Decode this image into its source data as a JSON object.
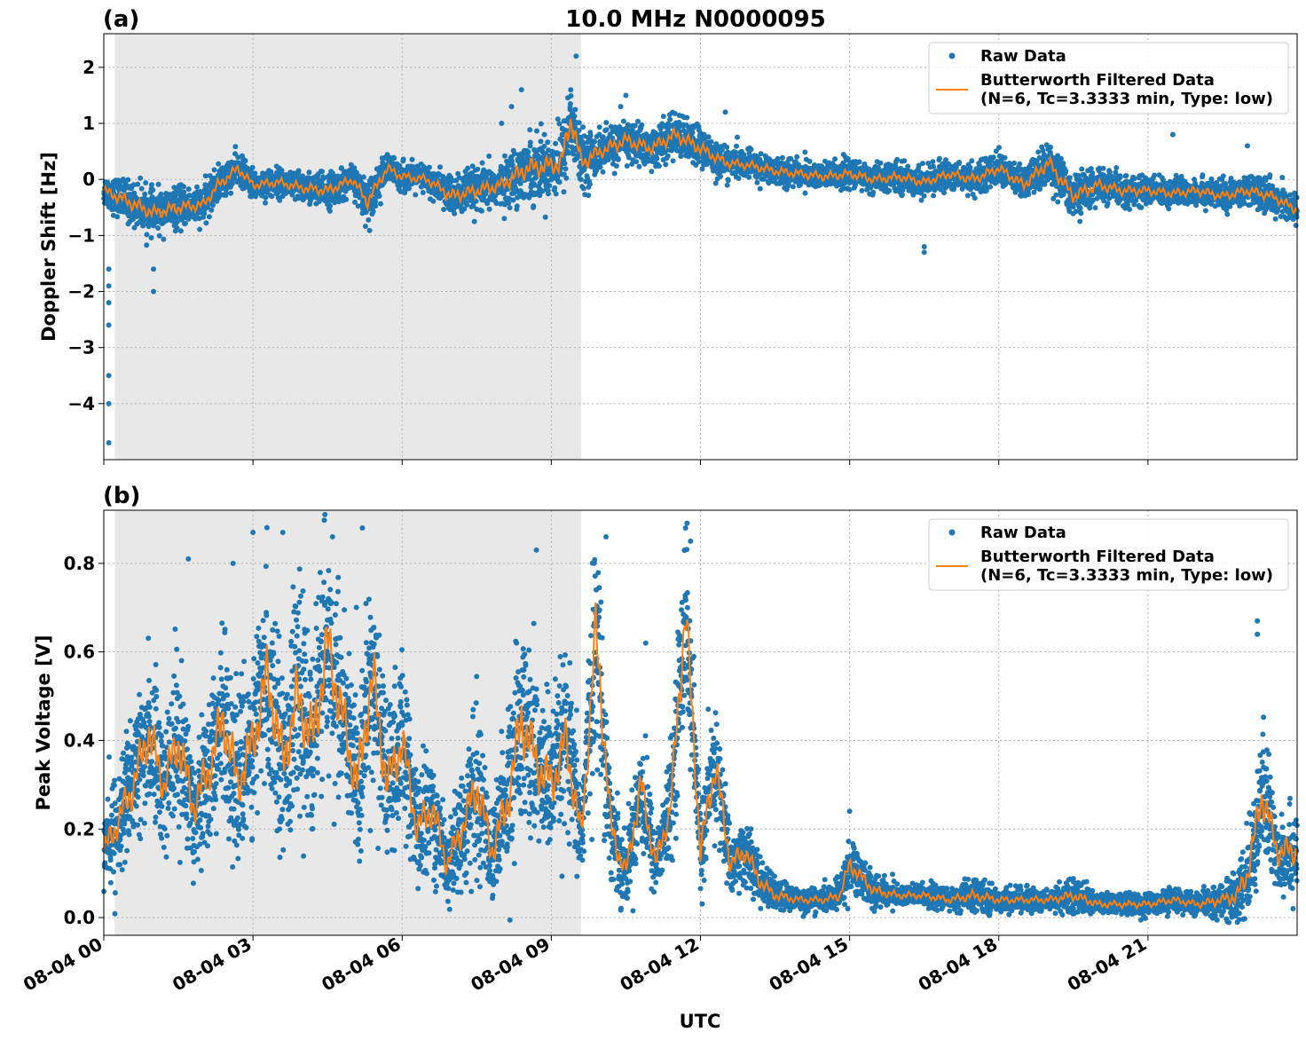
{
  "title": "10.0 MHz N0000095",
  "xlabel": "UTC",
  "x_tick_labels": [
    "08-04 00",
    "08-04 03",
    "08-04 06",
    "08-04 09",
    "08-04 12",
    "08-04 15",
    "08-04 18",
    "08-04 21"
  ],
  "legend": {
    "raw": "Raw Data",
    "filtered_line1": "Butterworth Filtered Data",
    "filtered_line2": "(N=6, Tc=3.3333 min, Type: low)"
  },
  "colors": {
    "raw": "#1f77b4",
    "filtered": "#ff7f0e",
    "shade": "#e8e8e8"
  },
  "chart_data": [
    {
      "type": "scatter",
      "panel": "(a)",
      "ylabel": "Doppler Shift [Hz]",
      "xlim_hours": [
        0,
        24
      ],
      "ylim": [
        -5.0,
        2.6
      ],
      "y_ticks": [
        2,
        1,
        0,
        -1,
        -2,
        -3,
        -4
      ],
      "y_tick_labels": [
        "2",
        "1",
        "0",
        "−1",
        "−2",
        "−3",
        "−4"
      ],
      "grid": true,
      "legend_position": "top-right",
      "shaded_interval_hours": [
        0.22,
        9.6
      ],
      "series": [
        {
          "name": "Butterworth Filtered Data",
          "style": "line",
          "x_hours": [
            0,
            0.5,
            1,
            1.5,
            2,
            2.3,
            2.7,
            3,
            3.5,
            4,
            4.5,
            5,
            5.3,
            5.7,
            6,
            6.5,
            7,
            7.5,
            8,
            8.5,
            9,
            9.2,
            9.4,
            9.6,
            10,
            10.5,
            11,
            11.5,
            12,
            12.5,
            13,
            13.5,
            14,
            14.5,
            15,
            15.5,
            16,
            16.5,
            17,
            17.5,
            18,
            18.5,
            19,
            19.5,
            20,
            20.5,
            21,
            21.5,
            22,
            22.5,
            23,
            23.5,
            24
          ],
          "values": [
            -0.2,
            -0.4,
            -0.6,
            -0.5,
            -0.45,
            -0.1,
            0.2,
            -0.1,
            -0.05,
            -0.15,
            -0.2,
            0.0,
            -0.4,
            0.2,
            0.05,
            0.0,
            -0.3,
            -0.2,
            -0.1,
            0.2,
            0.25,
            0.3,
            1.1,
            0.3,
            0.5,
            0.7,
            0.55,
            0.8,
            0.55,
            0.3,
            0.25,
            0.15,
            0.1,
            0.05,
            0.1,
            0.0,
            0.05,
            -0.05,
            0.1,
            0.0,
            0.2,
            -0.1,
            0.3,
            -0.3,
            -0.1,
            -0.2,
            -0.2,
            -0.25,
            -0.2,
            -0.3,
            -0.2,
            -0.3,
            -0.55
          ],
          "noise_spread": [
            0.22,
            0.3,
            0.3,
            0.28,
            0.25,
            0.25,
            0.22,
            0.2,
            0.2,
            0.22,
            0.25,
            0.2,
            0.3,
            0.22,
            0.2,
            0.2,
            0.3,
            0.3,
            0.3,
            0.45,
            0.45,
            0.5,
            0.6,
            0.4,
            0.3,
            0.3,
            0.3,
            0.3,
            0.3,
            0.22,
            0.2,
            0.2,
            0.2,
            0.2,
            0.2,
            0.2,
            0.2,
            0.2,
            0.2,
            0.22,
            0.22,
            0.25,
            0.3,
            0.3,
            0.25,
            0.22,
            0.2,
            0.2,
            0.2,
            0.2,
            0.22,
            0.22,
            0.22
          ]
        },
        {
          "name": "Raw Data",
          "style": "points",
          "outliers": [
            [
              0.1,
              -4.7
            ],
            [
              0.1,
              -4.0
            ],
            [
              0.1,
              -3.5
            ],
            [
              0.1,
              -2.6
            ],
            [
              0.1,
              -2.2
            ],
            [
              0.1,
              -1.9
            ],
            [
              0.1,
              -1.6
            ],
            [
              1.0,
              -2.0
            ],
            [
              1.0,
              -1.6
            ],
            [
              8.4,
              1.6
            ],
            [
              8.2,
              1.3
            ],
            [
              9.5,
              2.2
            ],
            [
              8.0,
              1.0
            ],
            [
              10.5,
              1.5
            ],
            [
              12.5,
              1.2
            ],
            [
              16.5,
              -1.3
            ],
            [
              16.5,
              -1.2
            ],
            [
              21.5,
              0.8
            ],
            [
              23.0,
              0.6
            ]
          ]
        }
      ]
    },
    {
      "type": "scatter",
      "panel": "(b)",
      "ylabel": "Peak Voltage [V]",
      "xlim_hours": [
        0,
        24
      ],
      "ylim": [
        -0.04,
        0.92
      ],
      "y_ticks": [
        0.0,
        0.2,
        0.4,
        0.6,
        0.8
      ],
      "y_tick_labels": [
        "0.0",
        "0.2",
        "0.4",
        "0.6",
        "0.8"
      ],
      "grid": true,
      "legend_position": "top-right",
      "shaded_interval_hours": [
        0.22,
        9.6
      ],
      "series": [
        {
          "name": "Butterworth Filtered Data",
          "style": "line",
          "x_hours": [
            0,
            0.3,
            0.6,
            0.9,
            1.2,
            1.5,
            1.8,
            2.1,
            2.4,
            2.7,
            3.0,
            3.3,
            3.6,
            3.9,
            4.2,
            4.5,
            4.8,
            5.1,
            5.4,
            5.7,
            6.0,
            6.3,
            6.6,
            6.9,
            7.2,
            7.5,
            7.8,
            8.1,
            8.4,
            8.7,
            9.0,
            9.3,
            9.6,
            9.9,
            10.2,
            10.5,
            10.8,
            11.1,
            11.4,
            11.7,
            12.0,
            12.3,
            12.6,
            12.9,
            13.2,
            13.5,
            14.0,
            14.5,
            14.8,
            15.0,
            15.5,
            16.0,
            16.5,
            17.0,
            17.5,
            18.0,
            18.5,
            19.0,
            19.5,
            20.0,
            20.5,
            21.0,
            21.5,
            22.0,
            22.5,
            22.8,
            23.0,
            23.3,
            23.6,
            24
          ],
          "values": [
            0.15,
            0.22,
            0.3,
            0.42,
            0.3,
            0.4,
            0.25,
            0.33,
            0.45,
            0.3,
            0.4,
            0.55,
            0.35,
            0.5,
            0.4,
            0.62,
            0.45,
            0.3,
            0.55,
            0.3,
            0.4,
            0.2,
            0.25,
            0.12,
            0.2,
            0.3,
            0.15,
            0.25,
            0.45,
            0.35,
            0.3,
            0.4,
            0.18,
            0.65,
            0.2,
            0.1,
            0.3,
            0.12,
            0.25,
            0.7,
            0.15,
            0.35,
            0.12,
            0.15,
            0.08,
            0.05,
            0.04,
            0.04,
            0.05,
            0.12,
            0.06,
            0.05,
            0.05,
            0.04,
            0.05,
            0.04,
            0.04,
            0.04,
            0.05,
            0.03,
            0.03,
            0.03,
            0.04,
            0.03,
            0.04,
            0.05,
            0.1,
            0.28,
            0.15,
            0.15
          ],
          "noise_spread": [
            0.08,
            0.1,
            0.12,
            0.15,
            0.12,
            0.15,
            0.12,
            0.14,
            0.16,
            0.14,
            0.16,
            0.2,
            0.16,
            0.2,
            0.18,
            0.2,
            0.18,
            0.15,
            0.2,
            0.14,
            0.15,
            0.1,
            0.12,
            0.07,
            0.1,
            0.14,
            0.1,
            0.14,
            0.18,
            0.16,
            0.14,
            0.16,
            0.1,
            0.2,
            0.1,
            0.06,
            0.12,
            0.06,
            0.1,
            0.18,
            0.08,
            0.12,
            0.06,
            0.06,
            0.04,
            0.03,
            0.02,
            0.02,
            0.03,
            0.05,
            0.03,
            0.02,
            0.02,
            0.02,
            0.03,
            0.02,
            0.02,
            0.02,
            0.03,
            0.02,
            0.02,
            0.02,
            0.02,
            0.02,
            0.03,
            0.05,
            0.08,
            0.12,
            0.08,
            0.08
          ]
        },
        {
          "name": "Raw Data",
          "style": "points",
          "outliers": [
            [
              3.0,
              0.87
            ],
            [
              3.6,
              0.87
            ],
            [
              5.2,
              0.88
            ],
            [
              4.6,
              0.86
            ],
            [
              10.1,
              0.86
            ],
            [
              11.7,
              0.88
            ],
            [
              11.8,
              0.85
            ],
            [
              2.6,
              0.8
            ],
            [
              1.7,
              0.81
            ],
            [
              8.7,
              0.83
            ],
            [
              23.2,
              0.67
            ],
            [
              23.2,
              0.64
            ],
            [
              15.0,
              0.24
            ],
            [
              10.9,
              0.62
            ]
          ]
        }
      ]
    }
  ]
}
